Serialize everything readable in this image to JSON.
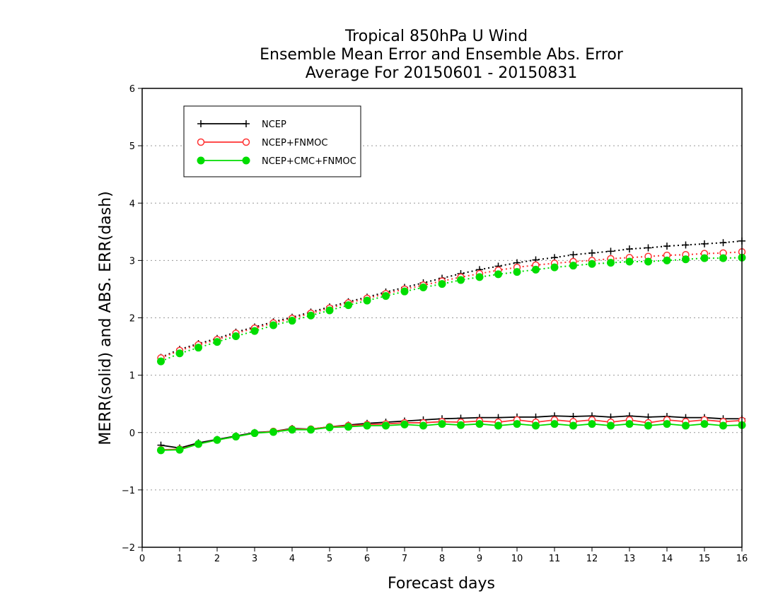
{
  "chart_data": {
    "type": "line",
    "title_lines": [
      "Tropical 850hPa U Wind",
      "Ensemble Mean Error and Ensemble Abs. Error",
      "Average For 20150601 - 20150831"
    ],
    "xlabel": "Forecast days",
    "ylabel": "MERR(solid) and ABS. ERR(dash)",
    "xlim": [
      0,
      16
    ],
    "ylim": [
      -2,
      6
    ],
    "x_ticks": [
      0,
      1,
      2,
      3,
      4,
      5,
      6,
      7,
      8,
      9,
      10,
      11,
      12,
      13,
      14,
      15,
      16
    ],
    "y_ticks": [
      -2,
      -1,
      0,
      1,
      2,
      3,
      4,
      5,
      6
    ],
    "grid": "horizontal dotted",
    "legend_position": "top-left",
    "x": [
      0.5,
      1,
      1.5,
      2,
      2.5,
      3,
      3.5,
      4,
      4.5,
      5,
      5.5,
      6,
      6.5,
      7,
      7.5,
      8,
      8.5,
      9,
      9.5,
      10,
      10.5,
      11,
      11.5,
      12,
      12.5,
      13,
      13.5,
      14,
      14.5,
      15,
      15.5,
      16
    ],
    "series": [
      {
        "name": "NCEP",
        "color": "#000000",
        "marker": "plus",
        "merr": [
          -0.22,
          -0.27,
          -0.18,
          -0.12,
          -0.06,
          0.0,
          0.02,
          0.07,
          0.06,
          0.1,
          0.13,
          0.16,
          0.18,
          0.2,
          0.22,
          0.24,
          0.25,
          0.26,
          0.26,
          0.27,
          0.27,
          0.29,
          0.28,
          0.29,
          0.27,
          0.29,
          0.27,
          0.28,
          0.26,
          0.26,
          0.24,
          0.24
        ],
        "abs_err": [
          1.31,
          1.45,
          1.55,
          1.64,
          1.75,
          1.84,
          1.93,
          2.01,
          2.1,
          2.19,
          2.28,
          2.36,
          2.45,
          2.53,
          2.61,
          2.69,
          2.77,
          2.84,
          2.9,
          2.96,
          3.01,
          3.05,
          3.1,
          3.13,
          3.16,
          3.2,
          3.22,
          3.25,
          3.27,
          3.29,
          3.31,
          3.34
        ]
      },
      {
        "name": "NCEP+FNMOC",
        "color": "#ff3333",
        "marker": "open-circle",
        "merr": [
          -0.3,
          -0.29,
          -0.2,
          -0.13,
          -0.07,
          -0.01,
          0.02,
          0.06,
          0.06,
          0.1,
          0.12,
          0.14,
          0.15,
          0.17,
          0.17,
          0.19,
          0.18,
          0.2,
          0.18,
          0.22,
          0.18,
          0.22,
          0.19,
          0.22,
          0.18,
          0.22,
          0.17,
          0.22,
          0.19,
          0.22,
          0.19,
          0.21
        ],
        "abs_err": [
          1.3,
          1.43,
          1.53,
          1.62,
          1.73,
          1.82,
          1.91,
          1.99,
          2.08,
          2.17,
          2.26,
          2.34,
          2.42,
          2.5,
          2.57,
          2.64,
          2.71,
          2.77,
          2.83,
          2.88,
          2.92,
          2.95,
          2.98,
          3.0,
          3.03,
          3.05,
          3.07,
          3.09,
          3.1,
          3.12,
          3.13,
          3.15
        ]
      },
      {
        "name": "NCEP+CMC+FNMOC",
        "color": "#00dd00",
        "marker": "filled-circle",
        "merr": [
          -0.31,
          -0.3,
          -0.2,
          -0.13,
          -0.07,
          -0.01,
          0.01,
          0.05,
          0.05,
          0.09,
          0.1,
          0.12,
          0.12,
          0.14,
          0.12,
          0.15,
          0.13,
          0.15,
          0.12,
          0.15,
          0.12,
          0.15,
          0.12,
          0.15,
          0.12,
          0.15,
          0.12,
          0.15,
          0.12,
          0.15,
          0.12,
          0.13
        ],
        "abs_err": [
          1.24,
          1.38,
          1.48,
          1.58,
          1.68,
          1.77,
          1.87,
          1.95,
          2.04,
          2.13,
          2.22,
          2.3,
          2.38,
          2.46,
          2.53,
          2.59,
          2.66,
          2.71,
          2.76,
          2.8,
          2.84,
          2.88,
          2.91,
          2.94,
          2.96,
          2.98,
          2.98,
          3.0,
          3.02,
          3.04,
          3.04,
          3.05
        ]
      }
    ]
  }
}
